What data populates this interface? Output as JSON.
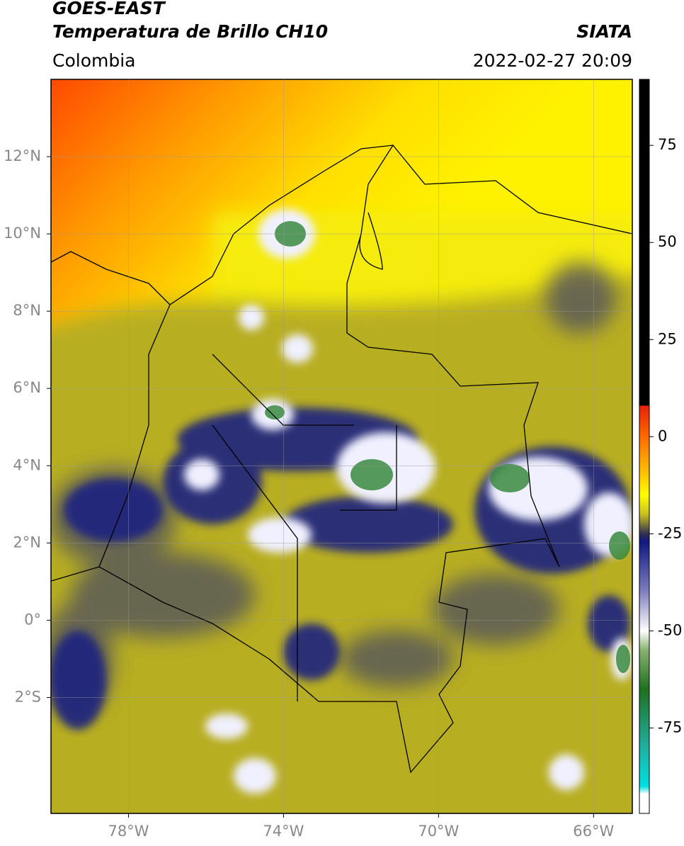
{
  "header": {
    "title": "GOES-EAST",
    "subtitle": "Temperatura de Brillo CH10",
    "source": "SIATA",
    "region": "Colombia",
    "datetime": "2022-02-27 20:09"
  },
  "map": {
    "xlim": [
      -80,
      -65
    ],
    "ylim": [
      -5,
      14
    ],
    "xticks": [
      {
        "value": -78,
        "label": "78°W"
      },
      {
        "value": -74,
        "label": "74°W"
      },
      {
        "value": -70,
        "label": "70°W"
      },
      {
        "value": -66,
        "label": "66°W"
      }
    ],
    "yticks": [
      {
        "value": 12,
        "label": "12°N"
      },
      {
        "value": 10,
        "label": "10°N"
      },
      {
        "value": 8,
        "label": "8°N"
      },
      {
        "value": 6,
        "label": "6°N"
      },
      {
        "value": 4,
        "label": "4°N"
      },
      {
        "value": 2,
        "label": "2°N"
      },
      {
        "value": 0,
        "label": "0°"
      },
      {
        "value": -2,
        "label": "2°S"
      }
    ],
    "grid": true
  },
  "colorbar": {
    "lim": [
      -97,
      92
    ],
    "ticks": [
      75,
      50,
      25,
      0,
      -25,
      -50,
      -75
    ],
    "stops": [
      {
        "value": 92,
        "color": "#000000"
      },
      {
        "value": 8,
        "color": "#000000"
      },
      {
        "value": 8,
        "color": "#e8200a"
      },
      {
        "value": 0,
        "color": "#ff6a00"
      },
      {
        "value": -10,
        "color": "#ffc800"
      },
      {
        "value": -15,
        "color": "#ffff00"
      },
      {
        "value": -20,
        "color": "#c8c020"
      },
      {
        "value": -25,
        "color": "#303050"
      },
      {
        "value": -27,
        "color": "#101880"
      },
      {
        "value": -40,
        "color": "#8080c0"
      },
      {
        "value": -50,
        "color": "#ffffff"
      },
      {
        "value": -55,
        "color": "#88b070"
      },
      {
        "value": -65,
        "color": "#207020"
      },
      {
        "value": -80,
        "color": "#20b0a0"
      },
      {
        "value": -90,
        "color": "#00e0e0"
      },
      {
        "value": -92,
        "color": "#ffffff"
      },
      {
        "value": -97,
        "color": "#ffffff"
      }
    ]
  }
}
